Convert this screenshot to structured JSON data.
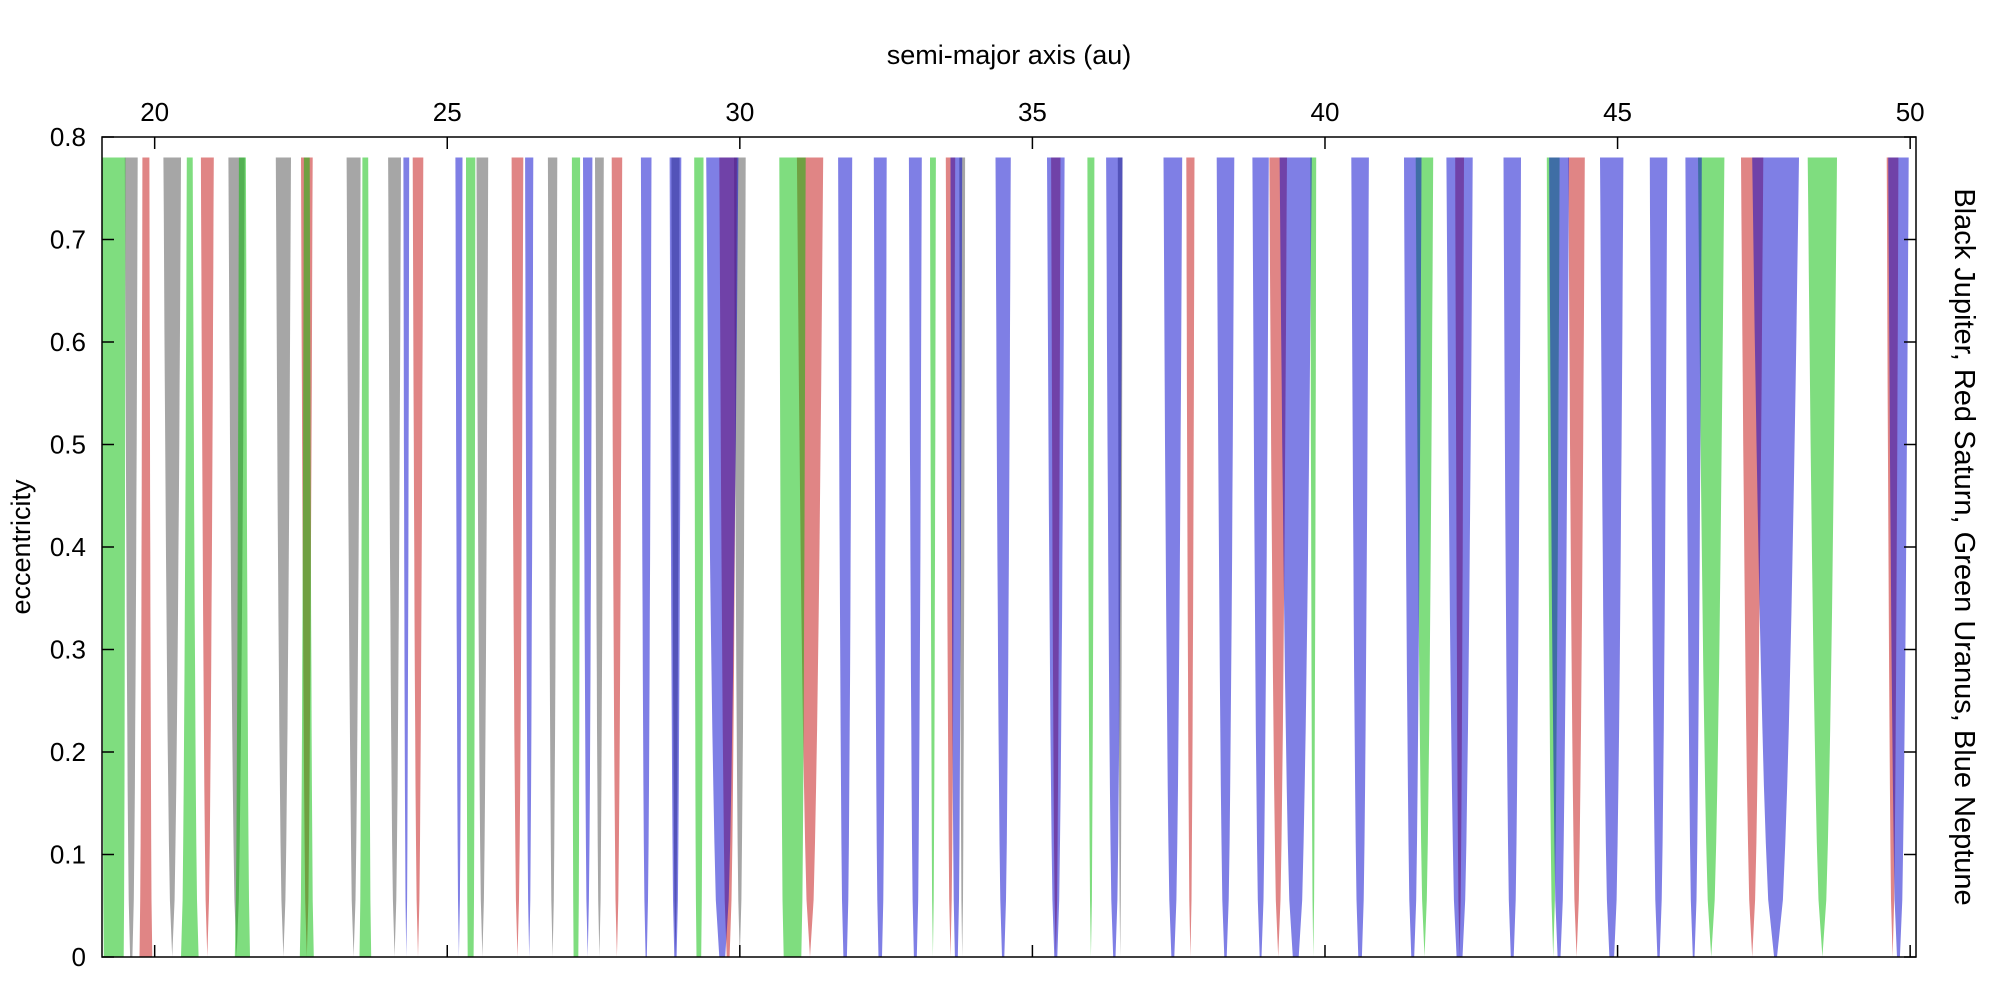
{
  "chart_data": {
    "type": "area",
    "title": "",
    "xlabel": "semi-major axis (au)",
    "ylabel": "eccentricity",
    "side_label": "Black Jupiter, Red Saturn, Green Uranus, Blue Neptune",
    "xlim": [
      19.1,
      50.1
    ],
    "ylim": [
      0,
      0.8
    ],
    "x_ticks": [
      20,
      25,
      30,
      35,
      40,
      45,
      50
    ],
    "y_ticks": [
      0,
      0.1,
      0.2,
      0.3,
      0.4,
      0.5,
      0.6,
      0.7,
      0.8
    ],
    "x_tick_labels": [
      "20",
      "25",
      "30",
      "35",
      "40",
      "45",
      "50"
    ],
    "y_tick_labels": [
      "0",
      "0.1",
      "0.2",
      "0.3",
      "0.4",
      "0.5",
      "0.6",
      "0.7",
      "0.8"
    ],
    "grid": false,
    "x_axis_position": "top",
    "data_e_max": 0.78,
    "series": [
      {
        "name": "Black Jupiter",
        "color": "#000000",
        "opacity": 0.35,
        "resonances": [
          {
            "a": 19.6,
            "w0": 0.04,
            "wt": 0.22
          },
          {
            "a": 20.3,
            "w0": 0.0,
            "wt": 0.3
          },
          {
            "a": 21.4,
            "w0": 0.0,
            "wt": 0.28
          },
          {
            "a": 22.2,
            "w0": 0.0,
            "wt": 0.26
          },
          {
            "a": 23.4,
            "w0": 0.0,
            "wt": 0.24
          },
          {
            "a": 24.1,
            "w0": 0.0,
            "wt": 0.22
          },
          {
            "a": 25.6,
            "w0": 0.0,
            "wt": 0.2
          },
          {
            "a": 26.8,
            "w0": 0.0,
            "wt": 0.16
          },
          {
            "a": 27.6,
            "w0": 0.0,
            "wt": 0.15
          },
          {
            "a": 28.9,
            "w0": 0.0,
            "wt": 0.14
          },
          {
            "a": 30.0,
            "w0": 0.0,
            "wt": 0.2
          },
          {
            "a": 33.8,
            "w0": 0.0,
            "wt": 0.1
          },
          {
            "a": 36.5,
            "w0": 0.0,
            "wt": 0.08
          }
        ]
      },
      {
        "name": "Red Saturn",
        "color": "#cc3333",
        "opacity": 0.6,
        "resonances": [
          {
            "a": 19.85,
            "w0": 0.22,
            "wt": 0.12
          },
          {
            "a": 20.9,
            "w0": 0.0,
            "wt": 0.22
          },
          {
            "a": 22.6,
            "w0": 0.0,
            "wt": 0.2
          },
          {
            "a": 24.5,
            "w0": 0.0,
            "wt": 0.18
          },
          {
            "a": 26.2,
            "w0": 0.0,
            "wt": 0.2
          },
          {
            "a": 27.9,
            "w0": 0.0,
            "wt": 0.18
          },
          {
            "a": 29.8,
            "w0": 0.05,
            "wt": 0.3
          },
          {
            "a": 31.2,
            "w0": 0.0,
            "wt": 0.45
          },
          {
            "a": 33.6,
            "w0": 0.0,
            "wt": 0.16
          },
          {
            "a": 35.4,
            "w0": 0.0,
            "wt": 0.16
          },
          {
            "a": 37.7,
            "w0": 0.0,
            "wt": 0.14
          },
          {
            "a": 39.2,
            "w0": 0.0,
            "wt": 0.3
          },
          {
            "a": 42.3,
            "w0": 0.0,
            "wt": 0.15
          },
          {
            "a": 44.3,
            "w0": 0.0,
            "wt": 0.28
          },
          {
            "a": 47.3,
            "w0": 0.0,
            "wt": 0.38
          },
          {
            "a": 49.7,
            "w0": 0.0,
            "wt": 0.2
          }
        ]
      },
      {
        "name": "Green Uranus",
        "color": "#00bb00",
        "opacity": 0.5,
        "resonances": [
          {
            "a": 19.3,
            "w0": 0.34,
            "wt": 0.4
          },
          {
            "a": 20.6,
            "w0": 0.3,
            "wt": 0.1
          },
          {
            "a": 21.5,
            "w0": 0.26,
            "wt": 0.12
          },
          {
            "a": 22.6,
            "w0": 0.24,
            "wt": 0.1
          },
          {
            "a": 23.6,
            "w0": 0.2,
            "wt": 0.1
          },
          {
            "a": 25.4,
            "w0": 0.1,
            "wt": 0.16
          },
          {
            "a": 27.2,
            "w0": 0.08,
            "wt": 0.14
          },
          {
            "a": 29.3,
            "w0": 0.08,
            "wt": 0.16
          },
          {
            "a": 30.9,
            "w0": 0.3,
            "wt": 0.45
          },
          {
            "a": 33.3,
            "w0": 0.0,
            "wt": 0.1
          },
          {
            "a": 36.0,
            "w0": 0.0,
            "wt": 0.12
          },
          {
            "a": 39.8,
            "w0": 0.0,
            "wt": 0.1
          },
          {
            "a": 41.7,
            "w0": 0.0,
            "wt": 0.3
          },
          {
            "a": 43.9,
            "w0": 0.0,
            "wt": 0.22
          },
          {
            "a": 46.6,
            "w0": 0.0,
            "wt": 0.45
          },
          {
            "a": 48.5,
            "w0": 0.0,
            "wt": 0.5
          }
        ]
      },
      {
        "name": "Blue Neptune",
        "color": "#0000cc",
        "opacity": 0.5,
        "resonances": [
          {
            "a": 24.3,
            "w0": 0.0,
            "wt": 0.1
          },
          {
            "a": 25.2,
            "w0": 0.0,
            "wt": 0.12
          },
          {
            "a": 26.4,
            "w0": 0.0,
            "wt": 0.14
          },
          {
            "a": 27.4,
            "w0": 0.0,
            "wt": 0.16
          },
          {
            "a": 28.4,
            "w0": 0.02,
            "wt": 0.18
          },
          {
            "a": 28.9,
            "w0": 0.04,
            "wt": 0.2
          },
          {
            "a": 29.7,
            "w0": 0.1,
            "wt": 0.55
          },
          {
            "a": 31.8,
            "w0": 0.06,
            "wt": 0.24
          },
          {
            "a": 32.4,
            "w0": 0.06,
            "wt": 0.22
          },
          {
            "a": 33.0,
            "w0": 0.05,
            "wt": 0.22
          },
          {
            "a": 33.7,
            "w0": 0.05,
            "wt": 0.2
          },
          {
            "a": 34.5,
            "w0": 0.04,
            "wt": 0.26
          },
          {
            "a": 35.4,
            "w0": 0.05,
            "wt": 0.3
          },
          {
            "a": 36.4,
            "w0": 0.04,
            "wt": 0.28
          },
          {
            "a": 37.4,
            "w0": 0.05,
            "wt": 0.32
          },
          {
            "a": 38.3,
            "w0": 0.04,
            "wt": 0.3
          },
          {
            "a": 38.9,
            "w0": 0.03,
            "wt": 0.28
          },
          {
            "a": 39.5,
            "w0": 0.1,
            "wt": 0.55
          },
          {
            "a": 40.6,
            "w0": 0.06,
            "wt": 0.3
          },
          {
            "a": 41.5,
            "w0": 0.05,
            "wt": 0.3
          },
          {
            "a": 42.3,
            "w0": 0.1,
            "wt": 0.45
          },
          {
            "a": 43.2,
            "w0": 0.05,
            "wt": 0.3
          },
          {
            "a": 44.0,
            "w0": 0.05,
            "wt": 0.34
          },
          {
            "a": 44.9,
            "w0": 0.08,
            "wt": 0.4
          },
          {
            "a": 45.7,
            "w0": 0.04,
            "wt": 0.3
          },
          {
            "a": 46.3,
            "w0": 0.03,
            "wt": 0.28
          },
          {
            "a": 47.7,
            "w0": 0.05,
            "wt": 0.8
          },
          {
            "a": 49.8,
            "w0": 0.05,
            "wt": 0.35
          }
        ]
      }
    ]
  }
}
